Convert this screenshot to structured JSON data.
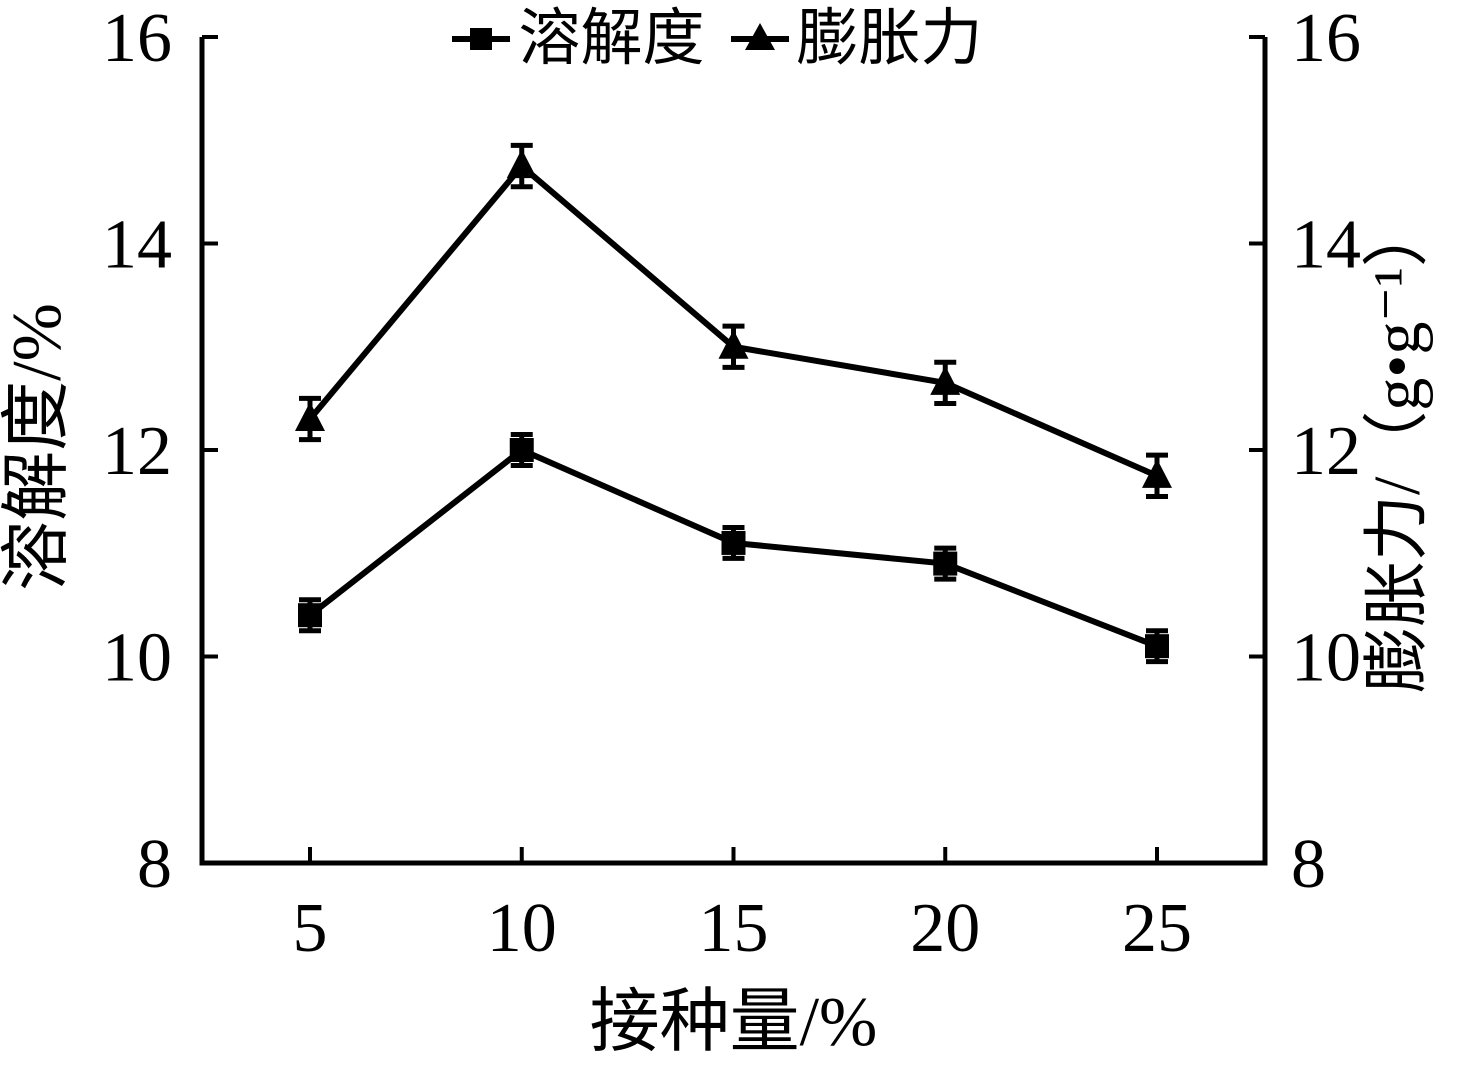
{
  "colors": {
    "foreground": "#000000",
    "background": "#ffffff"
  },
  "chart_data": {
    "type": "line",
    "x": [
      5,
      10,
      15,
      20,
      25
    ],
    "xticks": [
      5,
      10,
      15,
      20,
      25
    ],
    "xlabel": "接种量/%",
    "ylabel_left": "溶解度/%",
    "ylabel_right": "膨胀力/（g•g⁻¹）",
    "ylim": [
      8,
      16
    ],
    "yticks": [
      8,
      10,
      12,
      14,
      16
    ],
    "grid": false,
    "legend_position": "top-center",
    "error_bars": true,
    "series": [
      {
        "name": "溶解度",
        "axis": "left",
        "marker": "square",
        "color": "#000000",
        "values": [
          10.4,
          12.0,
          11.1,
          10.9,
          10.1
        ],
        "errors": [
          0.15,
          0.15,
          0.15,
          0.15,
          0.15
        ]
      },
      {
        "name": "膨胀力",
        "axis": "right",
        "marker": "triangle",
        "color": "#000000",
        "values": [
          12.3,
          14.75,
          13.0,
          12.65,
          11.75
        ],
        "errors": [
          0.2,
          0.2,
          0.2,
          0.2,
          0.2
        ]
      }
    ]
  }
}
